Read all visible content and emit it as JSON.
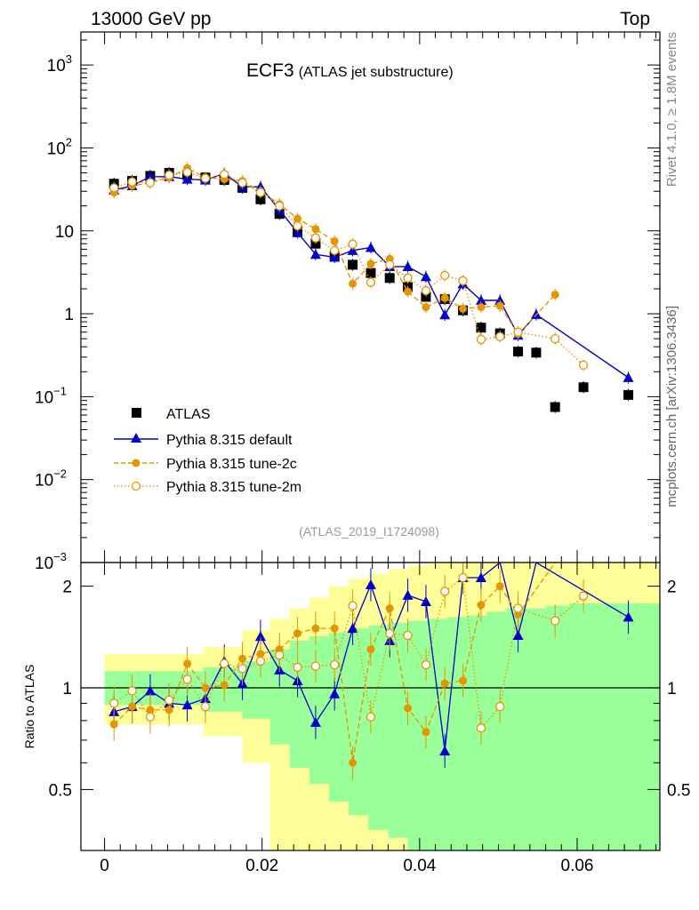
{
  "header": {
    "left": "13000 GeV pp",
    "right": "Top"
  },
  "side_labels": {
    "rivet": "Rivet 4.1.0, ≥ 1.8M events",
    "mcplots": "mcplots.cern.ch [arXiv:1306.3436]"
  },
  "chart_data": {
    "type": "scatter",
    "title": "ECF3",
    "subtitle": "(ATLAS jet substructure)",
    "watermark": "(ATLAS_2019_I1724098)",
    "y_scale": "log",
    "xlim": [
      -0.003,
      0.0705
    ],
    "ylim": [
      0.001,
      2500
    ],
    "x_ticks": [
      "0",
      "0.02",
      "0.04",
      "0.06"
    ],
    "x_tick_values": [
      0,
      0.02,
      0.04,
      0.06
    ],
    "y_ticks": [
      {
        "value": 1000,
        "base": "10",
        "exp": "3"
      },
      {
        "value": 100,
        "base": "10",
        "exp": "2"
      },
      {
        "value": 10,
        "base": "10",
        "exp": ""
      },
      {
        "value": 1,
        "base": "1",
        "exp": ""
      },
      {
        "value": 0.1,
        "base": "10",
        "exp": "−1"
      },
      {
        "value": 0.01,
        "base": "10",
        "exp": "−2"
      },
      {
        "value": 0.001,
        "base": "10",
        "exp": "−3"
      }
    ],
    "ratio": {
      "ylabel": "Ratio to ATLAS",
      "ylim": [
        0.33,
        2.35
      ],
      "y_scale": "log",
      "y_ticks": [
        {
          "value": 0.5,
          "label": "0.5"
        },
        {
          "value": 1,
          "label": "1"
        },
        {
          "value": 2,
          "label": "2"
        }
      ],
      "bins": [
        0,
        0.0125,
        0.0175,
        0.021,
        0.0235,
        0.026,
        0.0285,
        0.031,
        0.0335,
        0.036,
        0.0385,
        0.041,
        0.0435,
        0.046,
        0.0485,
        0.051,
        0.056,
        0.059,
        0.0705
      ],
      "band_green_low": [
        0.89,
        0.85,
        0.81,
        0.68,
        0.58,
        0.52,
        0.46,
        0.42,
        0.38,
        0.36,
        0.33,
        0.33,
        0.33,
        0.33,
        0.33,
        0.33,
        0.33,
        0.33
      ],
      "band_green_high": [
        1.12,
        1.15,
        1.2,
        1.3,
        1.38,
        1.42,
        1.46,
        1.5,
        1.53,
        1.56,
        1.58,
        1.6,
        1.62,
        1.64,
        1.68,
        1.72,
        1.75,
        1.78
      ],
      "band_yellow_low": [
        0.78,
        0.72,
        0.6,
        0.33,
        0.33,
        0.33,
        0.33,
        0.33,
        0.33,
        0.33,
        0.33,
        0.33,
        0.33,
        0.33,
        0.33,
        0.33,
        0.33,
        0.33
      ],
      "band_yellow_high": [
        1.26,
        1.32,
        1.48,
        1.6,
        1.72,
        1.85,
        2.0,
        2.1,
        2.18,
        2.25,
        2.3,
        2.35,
        2.35,
        2.35,
        2.35,
        2.35,
        2.35,
        2.35
      ]
    },
    "series": [
      {
        "name": "ATLAS",
        "color": "#000000",
        "marker": "square",
        "x": [
          0.0012,
          0.0035,
          0.0058,
          0.0082,
          0.0105,
          0.0128,
          0.0152,
          0.0175,
          0.0198,
          0.0222,
          0.0245,
          0.0268,
          0.0292,
          0.0315,
          0.0338,
          0.0362,
          0.0385,
          0.0408,
          0.0432,
          0.0455,
          0.0478,
          0.0502,
          0.0525,
          0.0548,
          0.0572,
          0.0608,
          0.0665
        ],
        "y": [
          37,
          40,
          46,
          50,
          47,
          44,
          41,
          33,
          24,
          16,
          10,
          7,
          5,
          3.9,
          3.1,
          2.7,
          2.1,
          1.6,
          1.5,
          1.1,
          0.68,
          0.58,
          0.35,
          0.34,
          0.075,
          0.13,
          0.105
        ]
      },
      {
        "name": "Pythia 8.315 default",
        "color": "#0000cc",
        "marker": "triangle",
        "line": "solid",
        "x": [
          0.0012,
          0.0035,
          0.0058,
          0.0082,
          0.0105,
          0.0128,
          0.0152,
          0.0175,
          0.0198,
          0.0222,
          0.0245,
          0.0268,
          0.0292,
          0.0315,
          0.0338,
          0.0362,
          0.0385,
          0.0408,
          0.0432,
          0.0455,
          0.0478,
          0.0502,
          0.0525,
          0.0548,
          0.0665
        ],
        "y": [
          31,
          35,
          45,
          45,
          42,
          41,
          49,
          34,
          34,
          18,
          9.5,
          5.2,
          4.8,
          5.8,
          6.3,
          3.7,
          3.7,
          2.8,
          0.97,
          2.3,
          1.45,
          1.45,
          0.55,
          0.98,
          0.17
        ],
        "ratio": [
          0.85,
          0.88,
          0.98,
          0.9,
          0.89,
          0.93,
          1.2,
          1.03,
          1.42,
          1.13,
          1.05,
          0.79,
          0.96,
          1.5,
          2.02,
          1.38,
          1.88,
          1.8,
          0.65,
          2.12,
          2.12,
          2.45,
          1.43,
          2.88,
          1.62
        ]
      },
      {
        "name": "Pythia 8.315 tune-2c",
        "color": "#e69500",
        "marker": "circle",
        "line": "dashed",
        "x": [
          0.0012,
          0.0035,
          0.0058,
          0.0082,
          0.0105,
          0.0128,
          0.0152,
          0.0175,
          0.0198,
          0.0222,
          0.0245,
          0.0268,
          0.0292,
          0.0315,
          0.0338,
          0.0362,
          0.0385,
          0.0408,
          0.0432,
          0.0455,
          0.0478,
          0.0502,
          0.0525,
          0.0572
        ],
        "y": [
          29,
          35,
          38,
          44,
          57,
          44,
          42,
          40,
          30,
          21,
          14,
          10.5,
          7.5,
          2.3,
          4.0,
          4.6,
          1.85,
          1.2,
          1.55,
          1.15,
          1.2,
          1.25,
          0.57,
          1.7
        ],
        "ratio": [
          0.78,
          0.88,
          0.86,
          0.86,
          1.18,
          1.0,
          1.02,
          1.22,
          1.26,
          1.3,
          1.45,
          1.5,
          1.5,
          0.6,
          1.3,
          1.72,
          0.87,
          0.74,
          1.03,
          1.05,
          1.76,
          2.0,
          1.65,
          2.6
        ]
      },
      {
        "name": "Pythia 8.315 tune-2m",
        "color": "#e69500",
        "marker": "open-circle",
        "line": "dotted",
        "x": [
          0.0012,
          0.0035,
          0.0058,
          0.0082,
          0.0105,
          0.0128,
          0.0152,
          0.0175,
          0.0198,
          0.0222,
          0.0245,
          0.0268,
          0.0292,
          0.0315,
          0.0338,
          0.0362,
          0.0385,
          0.0408,
          0.0432,
          0.0455,
          0.0478,
          0.0502,
          0.0525,
          0.0572,
          0.0608
        ],
        "y": [
          33,
          39,
          38,
          47,
          51,
          43,
          48,
          38,
          29,
          20,
          11.5,
          8.2,
          5.8,
          6.9,
          2.4,
          3.9,
          2.7,
          1.9,
          2.9,
          2.5,
          0.49,
          0.53,
          0.6,
          0.5,
          0.24
        ],
        "ratio": [
          0.9,
          0.98,
          0.82,
          0.92,
          1.06,
          0.88,
          1.18,
          1.14,
          1.2,
          1.25,
          1.15,
          1.16,
          1.17,
          1.75,
          0.82,
          1.45,
          1.43,
          1.17,
          1.93,
          2.12,
          0.76,
          0.88,
          1.72,
          1.58,
          1.87
        ]
      }
    ],
    "legend": [
      {
        "label": "ATLAS"
      },
      {
        "label": "Pythia 8.315 default"
      },
      {
        "label": "Pythia 8.315 tune-2c"
      },
      {
        "label": "Pythia 8.315 tune-2m"
      }
    ]
  }
}
